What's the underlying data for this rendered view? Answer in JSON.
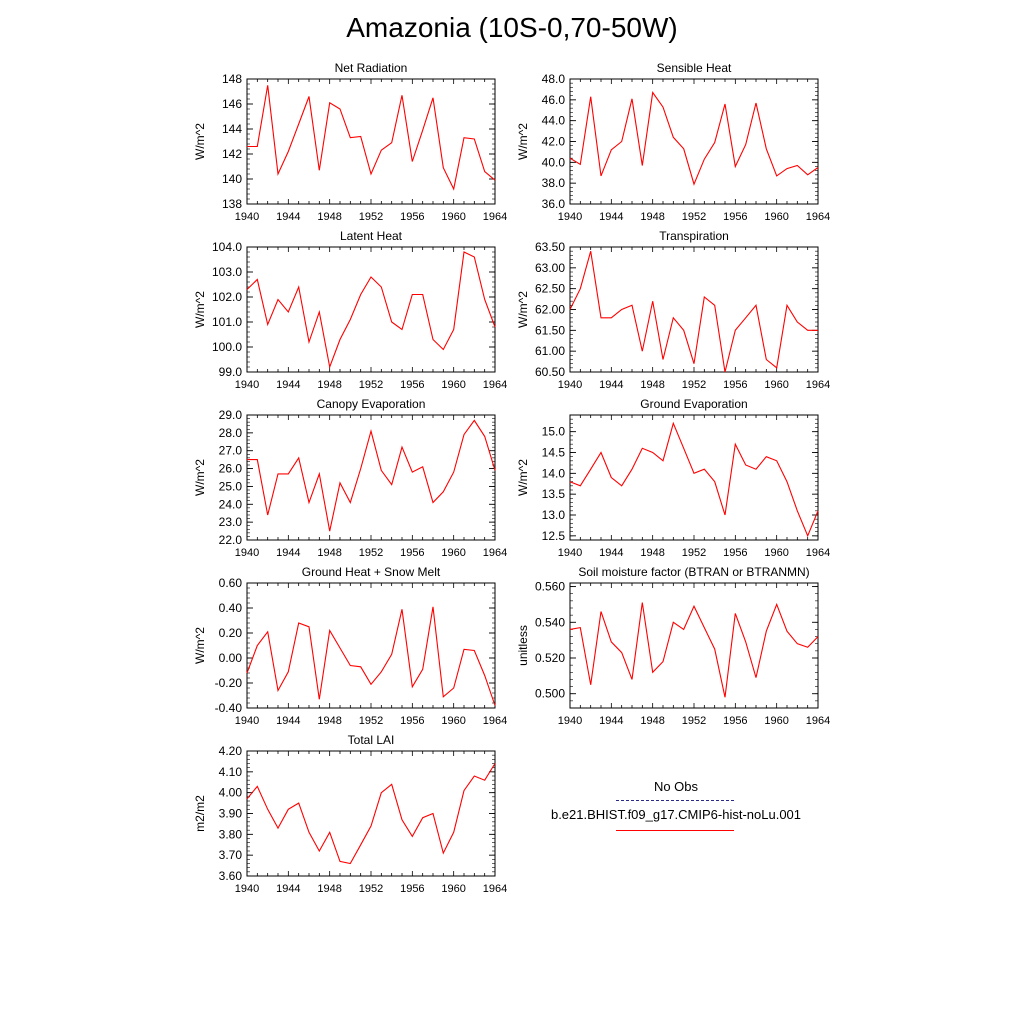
{
  "title": "Amazonia (10S-0,70-50W)",
  "colors": {
    "series": "#ff0000",
    "obs": "#2a2a8a"
  },
  "legend": {
    "obs_label": "No Obs",
    "model_label": "b.e21.BHIST.f09_g17.CMIP6-hist-noLu.001"
  },
  "chart_data": [
    {
      "type": "line",
      "title": "Net Radiation",
      "ylabel": "W/m^2",
      "xlim": [
        1940,
        1964
      ],
      "ylim": [
        138,
        148
      ],
      "yticks": [
        138,
        140,
        142,
        144,
        146,
        148
      ],
      "ydec": 0,
      "x": [
        1940,
        1941,
        1942,
        1943,
        1944,
        1945,
        1946,
        1947,
        1948,
        1949,
        1950,
        1951,
        1952,
        1953,
        1954,
        1955,
        1956,
        1957,
        1958,
        1959,
        1960,
        1961,
        1962,
        1963,
        1964
      ],
      "values": [
        142.6,
        142.6,
        147.5,
        140.4,
        142.2,
        144.4,
        146.6,
        140.7,
        146.1,
        145.6,
        143.3,
        143.4,
        140.4,
        142.3,
        142.9,
        146.7,
        141.4,
        143.9,
        146.5,
        140.9,
        139.2,
        143.3,
        143.2,
        140.6,
        139.9
      ]
    },
    {
      "type": "line",
      "title": "Sensible Heat",
      "ylabel": "W/m^2",
      "xlim": [
        1940,
        1964
      ],
      "ylim": [
        36,
        48
      ],
      "yticks": [
        36,
        38,
        40,
        42,
        44,
        46,
        48
      ],
      "ydec": 1,
      "x": [
        1940,
        1941,
        1942,
        1943,
        1944,
        1945,
        1946,
        1947,
        1948,
        1949,
        1950,
        1951,
        1952,
        1953,
        1954,
        1955,
        1956,
        1957,
        1958,
        1959,
        1960,
        1961,
        1962,
        1963,
        1964
      ],
      "values": [
        40.4,
        39.8,
        46.3,
        38.7,
        41.2,
        42.0,
        46.1,
        39.7,
        46.7,
        45.3,
        42.4,
        41.3,
        37.9,
        40.3,
        41.9,
        45.6,
        39.6,
        41.7,
        45.7,
        41.3,
        38.7,
        39.4,
        39.7,
        38.8,
        39.5
      ]
    },
    {
      "type": "line",
      "title": "Latent Heat",
      "ylabel": "W/m^2",
      "xlim": [
        1940,
        1964
      ],
      "ylim": [
        99,
        104
      ],
      "yticks": [
        99,
        100,
        101,
        102,
        103,
        104
      ],
      "ydec": 1,
      "x": [
        1940,
        1941,
        1942,
        1943,
        1944,
        1945,
        1946,
        1947,
        1948,
        1949,
        1950,
        1951,
        1952,
        1953,
        1954,
        1955,
        1956,
        1957,
        1958,
        1959,
        1960,
        1961,
        1962,
        1963,
        1964
      ],
      "values": [
        102.3,
        102.7,
        100.9,
        101.9,
        101.4,
        102.4,
        100.2,
        101.4,
        99.2,
        100.3,
        101.1,
        102.1,
        102.8,
        102.4,
        101.0,
        100.7,
        102.1,
        102.1,
        100.3,
        99.9,
        100.7,
        103.8,
        103.6,
        101.9,
        100.8
      ]
    },
    {
      "type": "line",
      "title": "Transpiration",
      "ylabel": "W/m^2",
      "xlim": [
        1940,
        1964
      ],
      "ylim": [
        60.5,
        63.5
      ],
      "yticks": [
        60.5,
        61.0,
        61.5,
        62.0,
        62.5,
        63.0,
        63.5
      ],
      "ydec": 2,
      "x": [
        1940,
        1941,
        1942,
        1943,
        1944,
        1945,
        1946,
        1947,
        1948,
        1949,
        1950,
        1951,
        1952,
        1953,
        1954,
        1955,
        1956,
        1957,
        1958,
        1959,
        1960,
        1961,
        1962,
        1963,
        1964
      ],
      "values": [
        62.0,
        62.5,
        63.4,
        61.8,
        61.8,
        62.0,
        62.1,
        61.0,
        62.2,
        60.8,
        61.8,
        61.5,
        60.7,
        62.3,
        62.1,
        60.5,
        61.5,
        61.8,
        62.1,
        60.8,
        60.6,
        62.1,
        61.7,
        61.5,
        61.5
      ]
    },
    {
      "type": "line",
      "title": "Canopy Evaporation",
      "ylabel": "W/m^2",
      "xlim": [
        1940,
        1964
      ],
      "ylim": [
        22,
        29
      ],
      "yticks": [
        22,
        23,
        24,
        25,
        26,
        27,
        28,
        29
      ],
      "ydec": 1,
      "x": [
        1940,
        1941,
        1942,
        1943,
        1944,
        1945,
        1946,
        1947,
        1948,
        1949,
        1950,
        1951,
        1952,
        1953,
        1954,
        1955,
        1956,
        1957,
        1958,
        1959,
        1960,
        1961,
        1962,
        1963,
        1964
      ],
      "values": [
        26.5,
        26.5,
        23.4,
        25.7,
        25.7,
        26.6,
        24.1,
        25.7,
        22.5,
        25.2,
        24.1,
        26.0,
        28.1,
        25.9,
        25.1,
        27.2,
        25.8,
        26.1,
        24.1,
        24.7,
        25.8,
        27.9,
        28.7,
        27.8,
        25.9
      ]
    },
    {
      "type": "line",
      "title": "Ground Evaporation",
      "ylabel": "W/m^2",
      "xlim": [
        1940,
        1964
      ],
      "ylim": [
        12.4,
        15.4
      ],
      "yticks": [
        12.5,
        13.0,
        13.5,
        14.0,
        14.5,
        15.0
      ],
      "ydec": 1,
      "x": [
        1940,
        1941,
        1942,
        1943,
        1944,
        1945,
        1946,
        1947,
        1948,
        1949,
        1950,
        1951,
        1952,
        1953,
        1954,
        1955,
        1956,
        1957,
        1958,
        1959,
        1960,
        1961,
        1962,
        1963,
        1964
      ],
      "values": [
        13.8,
        13.7,
        14.1,
        14.5,
        13.9,
        13.7,
        14.1,
        14.6,
        14.5,
        14.3,
        15.2,
        14.6,
        14.0,
        14.1,
        13.8,
        13.0,
        14.7,
        14.2,
        14.1,
        14.4,
        14.3,
        13.8,
        13.1,
        12.5,
        13.1
      ]
    },
    {
      "type": "line",
      "title": "Ground Heat + Snow Melt",
      "ylabel": "W/m^2",
      "xlim": [
        1940,
        1964
      ],
      "ylim": [
        -0.4,
        0.6
      ],
      "yticks": [
        -0.4,
        -0.2,
        0.0,
        0.2,
        0.4,
        0.6
      ],
      "ydec": 2,
      "x": [
        1940,
        1941,
        1942,
        1943,
        1944,
        1945,
        1946,
        1947,
        1948,
        1949,
        1950,
        1951,
        1952,
        1953,
        1954,
        1955,
        1956,
        1957,
        1958,
        1959,
        1960,
        1961,
        1962,
        1963,
        1964
      ],
      "values": [
        -0.12,
        0.1,
        0.21,
        -0.26,
        -0.11,
        0.28,
        0.25,
        -0.33,
        0.22,
        0.08,
        -0.06,
        -0.07,
        -0.21,
        -0.11,
        0.03,
        0.39,
        -0.23,
        -0.09,
        0.41,
        -0.31,
        -0.24,
        0.07,
        0.06,
        -0.14,
        -0.38
      ]
    },
    {
      "type": "line",
      "title": "Soil moisture factor (BTRAN or BTRANMN)",
      "ylabel": "unitless",
      "xlim": [
        1940,
        1964
      ],
      "ylim": [
        0.492,
        0.562
      ],
      "yticks": [
        0.5,
        0.52,
        0.54,
        0.56
      ],
      "ydec": 3,
      "x": [
        1940,
        1941,
        1942,
        1943,
        1944,
        1945,
        1946,
        1947,
        1948,
        1949,
        1950,
        1951,
        1952,
        1953,
        1954,
        1955,
        1956,
        1957,
        1958,
        1959,
        1960,
        1961,
        1962,
        1963,
        1964
      ],
      "values": [
        0.536,
        0.537,
        0.505,
        0.546,
        0.529,
        0.523,
        0.508,
        0.551,
        0.512,
        0.518,
        0.54,
        0.536,
        0.549,
        0.537,
        0.525,
        0.498,
        0.545,
        0.529,
        0.509,
        0.535,
        0.55,
        0.535,
        0.528,
        0.526,
        0.532
      ]
    },
    {
      "type": "line",
      "title": "Total LAI",
      "ylabel": "m2/m2",
      "xlim": [
        1940,
        1964
      ],
      "ylim": [
        3.6,
        4.2
      ],
      "yticks": [
        3.6,
        3.7,
        3.8,
        3.9,
        4.0,
        4.1,
        4.2
      ],
      "ydec": 2,
      "x": [
        1940,
        1941,
        1942,
        1943,
        1944,
        1945,
        1946,
        1947,
        1948,
        1949,
        1950,
        1951,
        1952,
        1953,
        1954,
        1955,
        1956,
        1957,
        1958,
        1959,
        1960,
        1961,
        1962,
        1963,
        1964
      ],
      "values": [
        3.97,
        4.03,
        3.92,
        3.83,
        3.92,
        3.95,
        3.81,
        3.72,
        3.81,
        3.67,
        3.66,
        3.75,
        3.84,
        4.0,
        4.04,
        3.87,
        3.79,
        3.88,
        3.9,
        3.71,
        3.81,
        4.01,
        4.08,
        4.06,
        4.14
      ]
    }
  ]
}
